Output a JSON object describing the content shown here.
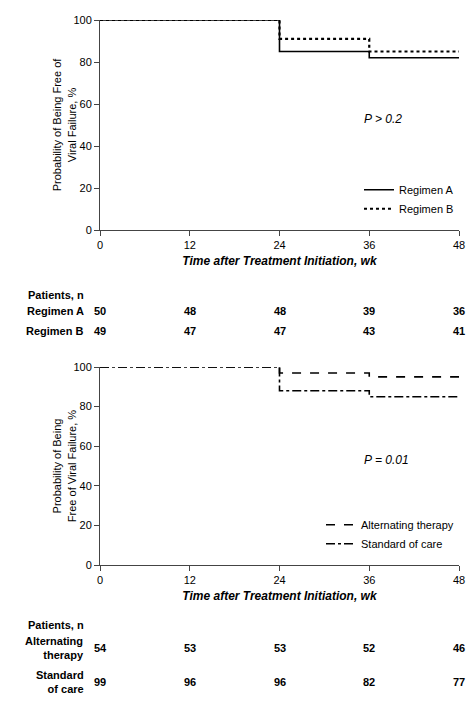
{
  "chart_data": [
    {
      "type": "line",
      "x_label": "Time after Treatment Initiation, wk",
      "y_label": "Probability of Being Free of\nViral Failure, %",
      "annotations": [
        "P > 0.2"
      ],
      "x": [
        0,
        24,
        24,
        36,
        36,
        48
      ],
      "series": [
        {
          "name": "Regimen A",
          "color": "#000000",
          "line_style": "solid",
          "values": [
            100,
            100,
            85,
            85,
            82,
            82
          ]
        },
        {
          "name": "Regimen B",
          "color": "#000000",
          "line_style": "dotted",
          "values": [
            100,
            100,
            91,
            91,
            85,
            85
          ]
        }
      ],
      "xlim": [
        0,
        48
      ],
      "xticks": [
        0,
        12,
        24,
        36,
        48
      ],
      "ylim": [
        0,
        100
      ],
      "yticks": [
        0,
        20,
        40,
        60,
        80,
        100
      ],
      "grid": false,
      "legend": "lower right",
      "at_risk": {
        "title": "Patients, n",
        "x": [
          0,
          12,
          24,
          36,
          48
        ],
        "rows": [
          {
            "name": "Regimen A",
            "values": [
              50,
              48,
              48,
              39,
              36
            ]
          },
          {
            "name": "Regimen B",
            "values": [
              49,
              47,
              47,
              43,
              41
            ]
          }
        ]
      }
    },
    {
      "type": "line",
      "x_label": "Time after Treatment Initiation, wk",
      "y_label": "Probability of Being\nFree of Viral Failure, %",
      "annotations": [
        "P = 0.01"
      ],
      "x": [
        0,
        24,
        24,
        36,
        36,
        48
      ],
      "series": [
        {
          "name": "Alternating therapy",
          "color": "#000000",
          "line_style": "dashed",
          "values": [
            100,
            100,
            97,
            97,
            95,
            95
          ]
        },
        {
          "name": "Standard of care",
          "color": "#000000",
          "line_style": "dashdot",
          "values": [
            100,
            100,
            88,
            88,
            85,
            85
          ]
        }
      ],
      "xlim": [
        0,
        48
      ],
      "xticks": [
        0,
        12,
        24,
        36,
        48
      ],
      "ylim": [
        0,
        100
      ],
      "yticks": [
        0,
        20,
        40,
        60,
        80,
        100
      ],
      "grid": false,
      "legend": "lower right",
      "at_risk": {
        "title": "Patients, n",
        "x": [
          0,
          12,
          24,
          36,
          48
        ],
        "rows": [
          {
            "name": "Alternating\ntherapy",
            "values": [
              54,
              53,
              53,
              52,
              46
            ]
          },
          {
            "name": "Standard\nof care",
            "values": [
              99,
              96,
              96,
              82,
              77
            ]
          }
        ]
      }
    }
  ]
}
